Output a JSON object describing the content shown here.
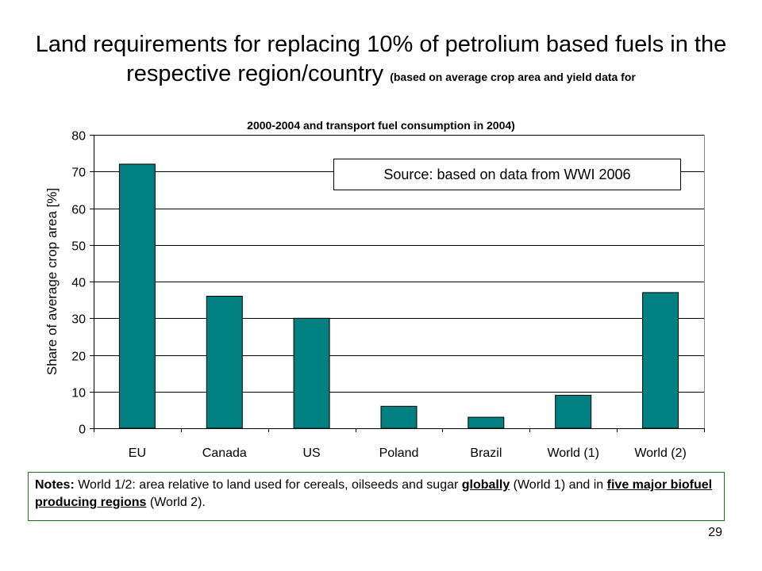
{
  "title": {
    "main": "Land requirements for replacing 10% of petrolium based fuels in the respective region/country",
    "small": "(based on average crop area and yield data for"
  },
  "subtitle": "2000-2004 and transport fuel consumption in 2004)",
  "source_note": "Source: based on data from WWI 2006",
  "notes": {
    "label": "Notes:",
    "t1": " World 1/2: area relative to land used for cereals, oilseeds and sugar ",
    "u1": "globally",
    "t2": " (World 1) and in ",
    "u2": "five major biofuel producing regions",
    "t3": " (World 2)."
  },
  "page_number": "29",
  "chart_data": {
    "type": "bar",
    "title": "",
    "xlabel": "",
    "ylabel": "Share of average crop area [%]",
    "categories": [
      "EU",
      "Canada",
      "US",
      "Poland",
      "Brazil",
      "World (1)",
      "World (2)"
    ],
    "values": [
      72,
      36,
      30,
      6,
      3,
      9,
      37
    ],
    "ylim": [
      0,
      80
    ],
    "yticks": [
      0,
      10,
      20,
      30,
      40,
      50,
      60,
      70,
      80
    ],
    "grid": true,
    "legend": "none",
    "bar_color": "#008080"
  }
}
